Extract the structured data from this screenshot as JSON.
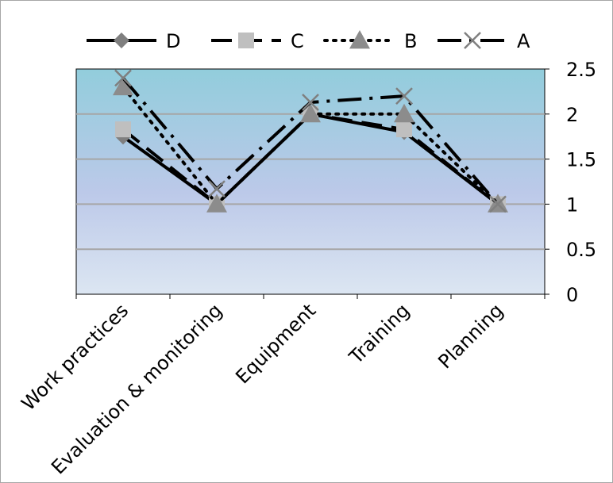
{
  "chart_data": {
    "type": "line",
    "categories": [
      "Work practices",
      "Evaluation & monitoring",
      "Equipment",
      "Training",
      "Planning"
    ],
    "series": [
      {
        "name": "D",
        "values": [
          1.75,
          1.0,
          2.0,
          1.8,
          1.0
        ],
        "marker": "diamond",
        "dash": "solid",
        "marker_color": "#7f7f7f"
      },
      {
        "name": "C",
        "values": [
          1.83,
          1.0,
          2.0,
          1.83,
          1.0
        ],
        "marker": "square",
        "dash": "longdash",
        "marker_color": "#bfbfbf"
      },
      {
        "name": "B",
        "values": [
          2.3,
          1.0,
          2.0,
          2.0,
          1.0
        ],
        "marker": "triangle",
        "dash": "dotted",
        "marker_color": "#8c8c8c"
      },
      {
        "name": "A",
        "values": [
          2.4,
          1.17,
          2.13,
          2.2,
          1.0
        ],
        "marker": "x",
        "dash": "dashdot",
        "marker_color": "#7f7f7f"
      }
    ],
    "legend_order": [
      "D",
      "C",
      "B",
      "A"
    ],
    "ylim": [
      0,
      2.5
    ],
    "yticks": [
      "0",
      "0.5",
      "1",
      "1.5",
      "2",
      "2.5"
    ],
    "y_axis_position": "right",
    "legend_position": "top",
    "grid": true,
    "title": "",
    "xlabel": "",
    "ylabel": "",
    "colors": {
      "line": "#000000",
      "gridline": "#a6a6a6",
      "plot_gradient_top": "#92cddc",
      "plot_gradient_mid": "#bcc9e9",
      "plot_gradient_bottom": "#dce6f2"
    }
  }
}
